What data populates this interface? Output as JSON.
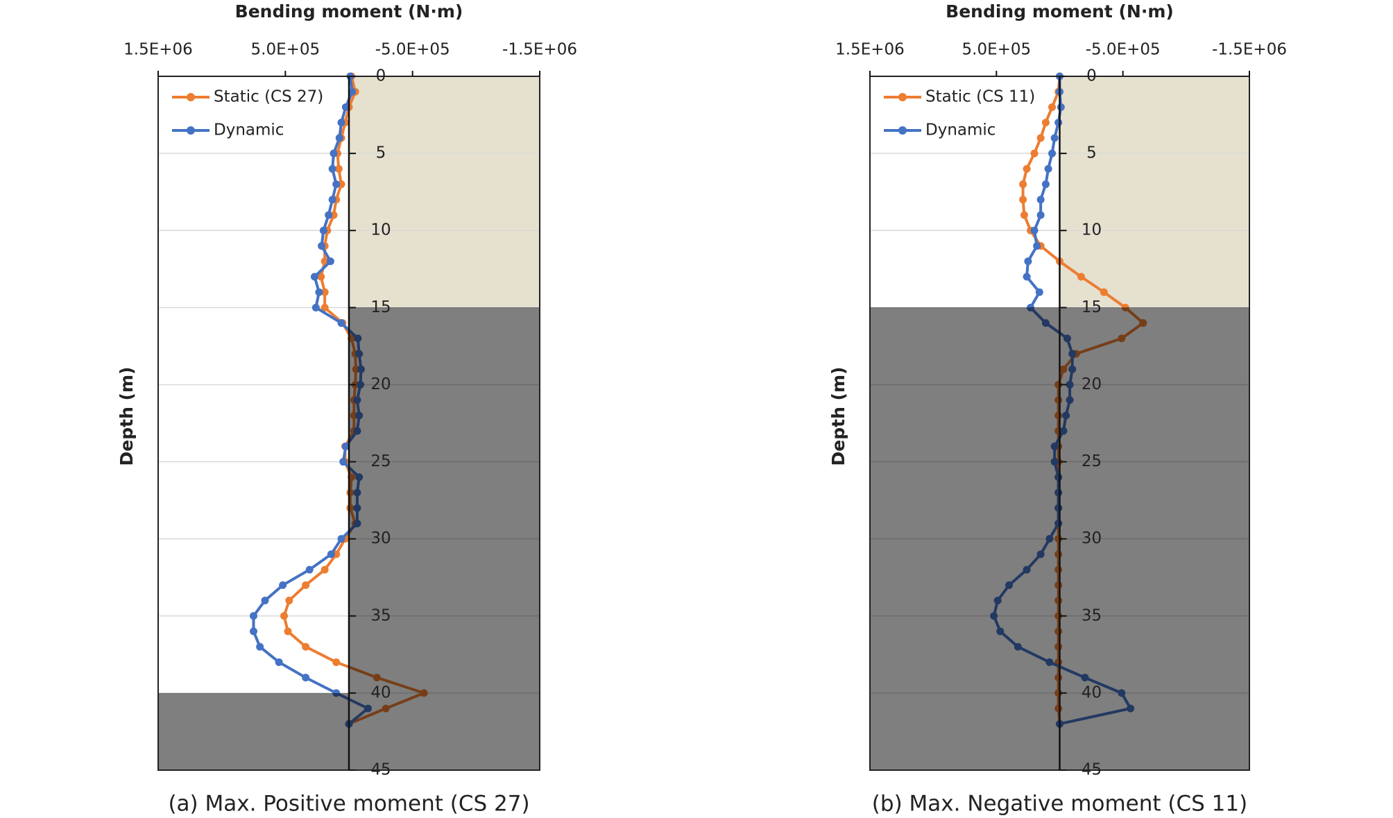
{
  "chart_data": [
    {
      "type": "line",
      "title": "Bending moment (N·m)",
      "ylabel": "Depth (m)",
      "caption": "(a) Max. Positive moment (CS 27)",
      "x": [
        0,
        1,
        2,
        3,
        4,
        5,
        6,
        7,
        8,
        9,
        10,
        11,
        12,
        13,
        14,
        15,
        16,
        17,
        18,
        19,
        20,
        21,
        22,
        23,
        24,
        25,
        26,
        27,
        28,
        29,
        30,
        31,
        32,
        33,
        34,
        35,
        36,
        37,
        38,
        39,
        40,
        41,
        42
      ],
      "xlim": [
        0,
        45
      ],
      "xticks": [
        0,
        5,
        10,
        15,
        20,
        25,
        30,
        35,
        40,
        45
      ],
      "ylim": [
        1500000,
        -1500000
      ],
      "yticks": [
        {
          "value": 1500000,
          "label": "1.5E+06"
        },
        {
          "value": 500000,
          "label": "5.0E+05"
        },
        {
          "value": -500000,
          "label": "-5.0E+05"
        },
        {
          "value": -1500000,
          "label": "-1.5E+06"
        }
      ],
      "grid": true,
      "legend": "upper left",
      "series": [
        {
          "name": "Static (CS 27)",
          "color": "#ED7D31",
          "values": [
            -20000,
            -50000,
            0,
            30000,
            60000,
            90000,
            80000,
            60000,
            100000,
            120000,
            170000,
            190000,
            190000,
            220000,
            190000,
            190000,
            50000,
            -20000,
            -50000,
            -55000,
            -50000,
            -40000,
            -40000,
            -40000,
            30000,
            30000,
            -20000,
            -10000,
            -10000,
            -50000,
            30000,
            100000,
            190000,
            340000,
            470000,
            510000,
            480000,
            340000,
            100000,
            -220000,
            -590000,
            -290000,
            0
          ]
        },
        {
          "name": "Dynamic",
          "color": "#4472C4",
          "values": [
            -10000,
            -25000,
            25000,
            60000,
            75000,
            120000,
            130000,
            100000,
            130000,
            160000,
            200000,
            215000,
            145000,
            270000,
            235000,
            260000,
            60000,
            -70000,
            -80000,
            -95000,
            -90000,
            -65000,
            -80000,
            -65000,
            25000,
            45000,
            -80000,
            -65000,
            -65000,
            -65000,
            60000,
            140000,
            310000,
            520000,
            660000,
            750000,
            750000,
            700000,
            550000,
            340000,
            100000,
            -150000,
            0
          ]
        }
      ]
    },
    {
      "type": "line",
      "title": "Bending moment (N·m)",
      "ylabel": "Depth (m)",
      "caption": "(b) Max. Negative moment (CS 11)",
      "x": [
        0,
        1,
        2,
        3,
        4,
        5,
        6,
        7,
        8,
        9,
        10,
        11,
        12,
        13,
        14,
        15,
        16,
        17,
        18,
        19,
        20,
        21,
        22,
        23,
        24,
        25,
        26,
        27,
        28,
        29,
        30,
        31,
        32,
        33,
        34,
        35,
        36,
        37,
        38,
        39,
        40,
        41,
        42
      ],
      "xlim": [
        0,
        45
      ],
      "xticks": [
        0,
        5,
        10,
        15,
        20,
        25,
        30,
        35,
        40,
        45
      ],
      "ylim": [
        1500000,
        -1500000
      ],
      "yticks": [
        {
          "value": 1500000,
          "label": "1.5E+06"
        },
        {
          "value": 500000,
          "label": "5.0E+05"
        },
        {
          "value": -500000,
          "label": "-5.0E+05"
        },
        {
          "value": -1500000,
          "label": "-1.5E+06"
        }
      ],
      "grid": true,
      "legend": "upper left",
      "series": [
        {
          "name": "Static (CS 11)",
          "color": "#ED7D31",
          "values": [
            0,
            10000,
            60000,
            110000,
            150000,
            200000,
            260000,
            290000,
            290000,
            280000,
            230000,
            150000,
            0,
            -170000,
            -350000,
            -520000,
            -660000,
            -490000,
            -130000,
            -30000,
            10000,
            10000,
            10000,
            10000,
            10000,
            10000,
            10000,
            10000,
            10000,
            10000,
            10000,
            10000,
            10000,
            10000,
            10000,
            10000,
            10000,
            10000,
            10000,
            10000,
            10000,
            10000,
            0
          ]
        },
        {
          "name": "Dynamic",
          "color": "#4472C4",
          "values": [
            0,
            0,
            -10000,
            10000,
            40000,
            60000,
            90000,
            110000,
            150000,
            150000,
            200000,
            180000,
            250000,
            260000,
            160000,
            230000,
            110000,
            -60000,
            -100000,
            -100000,
            -80000,
            -80000,
            -50000,
            -30000,
            40000,
            40000,
            10000,
            10000,
            10000,
            10000,
            80000,
            150000,
            260000,
            400000,
            490000,
            520000,
            470000,
            330000,
            80000,
            -200000,
            -490000,
            -560000,
            0
          ]
        }
      ]
    }
  ]
}
